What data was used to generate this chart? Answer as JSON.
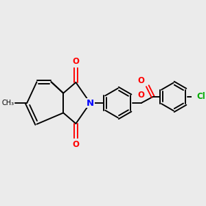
{
  "bg_color": "#ebebeb",
  "bond_color": "#000000",
  "bond_width": 1.4,
  "N_color": "#0000ff",
  "O_color": "#ff0000",
  "Cl_color": "#00aa00",
  "figsize": [
    3.0,
    3.0
  ],
  "dpi": 100,
  "xlim": [
    0,
    10
  ],
  "ylim": [
    0,
    10
  ]
}
